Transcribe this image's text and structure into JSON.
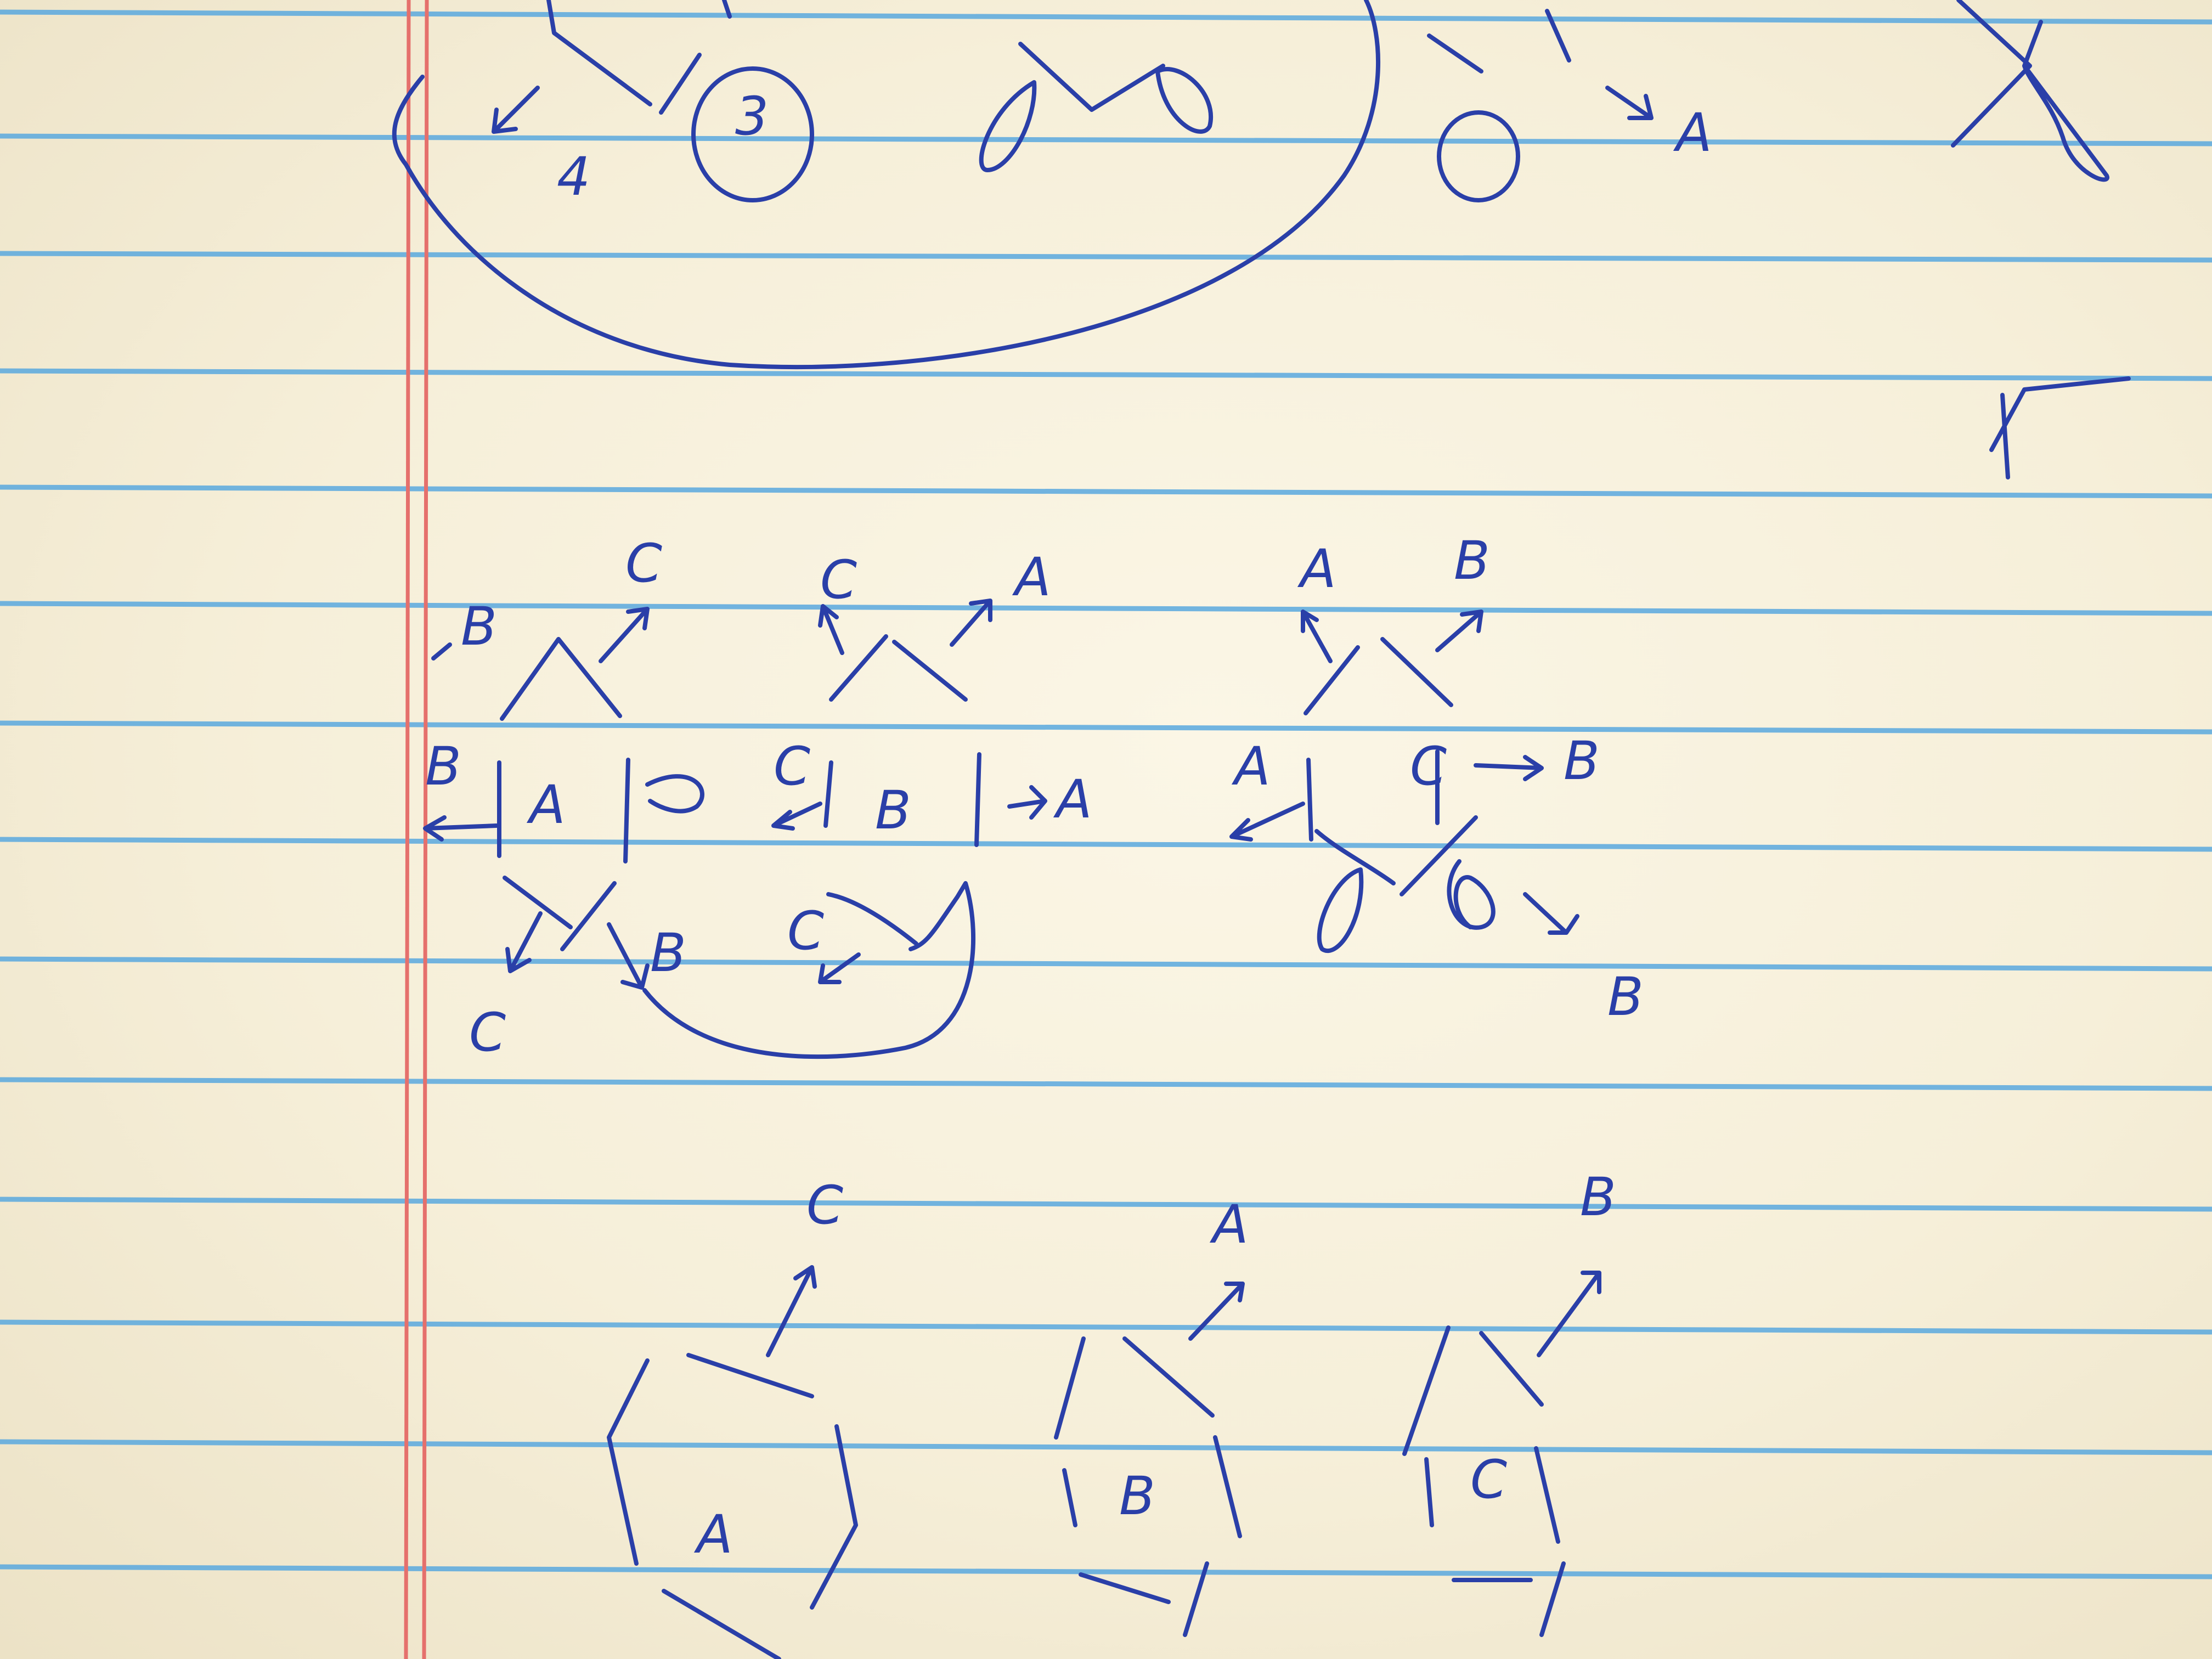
{
  "colors": {
    "paper": "#f7f0da",
    "rule_line": "#5aa9df",
    "margin_line": "#e5706c",
    "ink": "#2a3fa8"
  },
  "photo": {
    "subject": "ruled notebook paper with hand-drawn pen sketches of hexagon-like cell diagrams with letter labels and arrows"
  },
  "letters": {
    "top_four": "4",
    "top_three": "3",
    "top_a": "A",
    "mid_left_b1": "B",
    "mid_left_c_top": "C",
    "mid_left_b2": "B",
    "mid_left_a": "A",
    "mid_left_c_bottom": "C",
    "mid_left_b_bottom": "B",
    "mid_center_c_top": "C",
    "mid_center_a_top": "A",
    "mid_center_c_left": "C",
    "mid_center_b": "B",
    "mid_center_a_right": "A",
    "mid_center_c_bottom": "C",
    "mid_right_a_top": "A",
    "mid_right_b_top": "B",
    "mid_right_a_left": "A",
    "mid_right_c": "C",
    "mid_right_b_right": "B",
    "mid_right_b_bottom": "B",
    "bottom_c_top": "C",
    "bottom_a_top": "A",
    "bottom_b_top": "B",
    "bottom_a_center": "A",
    "bottom_b_center": "B",
    "bottom_c_center": "C"
  }
}
